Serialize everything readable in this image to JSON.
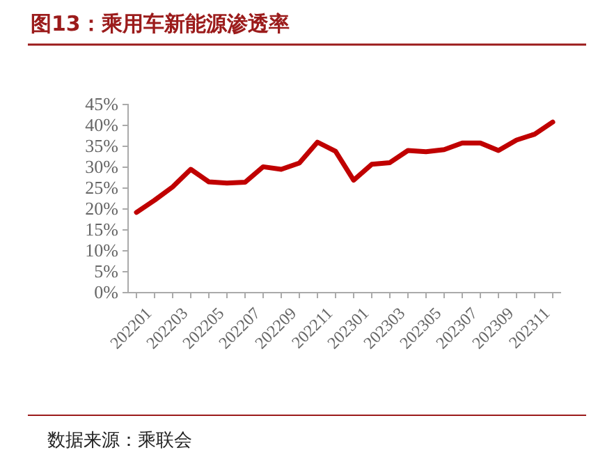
{
  "chart_data": {
    "type": "line",
    "title": "图13：乘用车新能源渗透率",
    "annotations": [
      "数据来源：乘联会"
    ],
    "categories": [
      "202201",
      null,
      "202203",
      null,
      "202205",
      null,
      "202207",
      null,
      "202209",
      null,
      "202211",
      null,
      "202301",
      null,
      "202303",
      null,
      "202305",
      null,
      "202307",
      null,
      "202309",
      null,
      "202311",
      null
    ],
    "series": [
      {
        "color": "#c00000",
        "values": [
          19.2,
          22.1,
          25.3,
          29.5,
          26.5,
          26.2,
          26.4,
          30.1,
          29.5,
          31,
          36,
          33.8,
          26.9,
          30.7,
          31.1,
          34,
          33.7,
          34.2,
          35.8,
          35.8,
          34,
          36.5,
          37.9,
          40.8
        ]
      }
    ],
    "ylim": [
      0,
      45
    ],
    "yticks": [
      {
        "value": 0,
        "label": "0%"
      },
      {
        "value": 5,
        "label": "5%"
      },
      {
        "value": 10,
        "label": "10%"
      },
      {
        "value": 15,
        "label": "15%"
      },
      {
        "value": 20,
        "label": "20%"
      },
      {
        "value": 25,
        "label": "25%"
      },
      {
        "value": 30,
        "label": "30%"
      },
      {
        "value": 35,
        "label": "35%"
      },
      {
        "value": 40,
        "label": "40%"
      },
      {
        "value": 45,
        "label": "45%"
      }
    ],
    "grid": false,
    "marker": "none",
    "line_style": "solid"
  }
}
